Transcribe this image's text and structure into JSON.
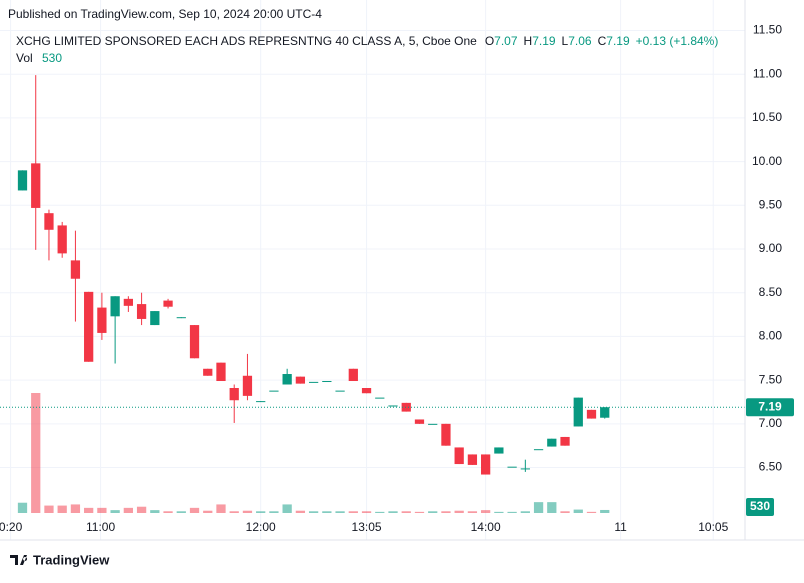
{
  "header": {
    "published": "Published on TradingView.com, Sep 10, 2024 20:00 UTC-4",
    "brand": "TradingView"
  },
  "chart_data": {
    "type": "candlestick",
    "title": "XCHG LIMITED SPONSORED EACH ADS REPRESNTNG 40 CLASS A, 5, Cboe One",
    "legend": [
      {
        "key": "O",
        "value": 7.07
      },
      {
        "key": "H",
        "value": 7.19
      },
      {
        "key": "L",
        "value": 7.06
      },
      {
        "key": "C",
        "value": 7.19
      }
    ],
    "change": "+0.13 (+1.84%)",
    "volume_label": "Vol",
    "last_volume": 530,
    "last_price": 7.19,
    "up_color": "#089981",
    "down_color": "#f23645",
    "grid": true,
    "x": [
      0,
      1,
      2,
      3,
      4,
      5,
      6,
      7,
      8,
      9,
      10,
      11,
      12,
      13,
      14,
      15,
      16,
      17,
      18,
      19,
      20,
      21,
      22,
      23,
      24,
      25,
      26,
      27,
      28,
      29,
      30,
      31,
      32,
      33,
      34,
      35,
      36,
      37,
      38,
      39,
      40,
      41,
      42,
      43,
      44
    ],
    "open": [
      9.67,
      9.98,
      9.41,
      9.27,
      8.87,
      8.51,
      8.33,
      8.23,
      8.43,
      8.37,
      8.13,
      8.41,
      8.21,
      8.13,
      7.63,
      7.7,
      7.41,
      7.55,
      7.25,
      7.38,
      7.45,
      7.54,
      7.48,
      7.49,
      7.38,
      7.63,
      7.41,
      7.3,
      7.21,
      7.24,
      7.05,
      7.0,
      7.0,
      6.73,
      6.65,
      6.65,
      6.66,
      6.51,
      6.49,
      6.71,
      6.74,
      6.85,
      6.97,
      7.16,
      7.07
    ],
    "high": [
      9.9,
      10.99,
      9.45,
      9.31,
      9.21,
      8.51,
      8.5,
      8.46,
      8.46,
      8.5,
      8.29,
      8.43,
      8.22,
      8.13,
      7.63,
      7.7,
      7.45,
      7.8,
      7.26,
      7.38,
      7.63,
      7.54,
      7.48,
      7.49,
      7.38,
      7.63,
      7.41,
      7.3,
      7.21,
      7.24,
      7.05,
      7.0,
      7.0,
      6.73,
      6.65,
      6.65,
      6.73,
      6.51,
      6.59,
      6.71,
      6.83,
      6.85,
      7.3,
      7.16,
      7.19
    ],
    "low": [
      9.67,
      8.99,
      8.87,
      8.9,
      8.17,
      7.71,
      7.96,
      7.69,
      8.28,
      8.13,
      8.13,
      8.32,
      8.21,
      7.75,
      7.55,
      7.49,
      7.01,
      7.27,
      7.25,
      7.38,
      7.45,
      7.46,
      7.48,
      7.49,
      7.38,
      7.49,
      7.35,
      7.3,
      7.21,
      7.14,
      7.0,
      7.0,
      6.75,
      6.54,
      6.53,
      6.42,
      6.66,
      6.51,
      6.45,
      6.71,
      6.74,
      6.75,
      6.97,
      7.06,
      7.06
    ],
    "close": [
      9.9,
      9.47,
      9.22,
      8.95,
      8.66,
      7.71,
      8.04,
      8.46,
      8.35,
      8.2,
      8.29,
      8.34,
      8.22,
      7.75,
      7.55,
      7.49,
      7.27,
      7.32,
      7.26,
      7.38,
      7.57,
      7.46,
      7.48,
      7.49,
      7.38,
      7.49,
      7.35,
      7.3,
      7.21,
      7.14,
      7.0,
      7.0,
      6.75,
      6.54,
      6.53,
      6.42,
      6.73,
      6.51,
      6.49,
      6.71,
      6.83,
      6.75,
      7.3,
      7.06,
      7.19
    ],
    "volume": [
      1800,
      21000,
      1300,
      1300,
      1500,
      900,
      900,
      500,
      900,
      1100,
      500,
      300,
      300,
      900,
      400,
      1500,
      300,
      400,
      300,
      300,
      1500,
      400,
      300,
      300,
      300,
      300,
      300,
      200,
      300,
      300,
      200,
      300,
      300,
      400,
      300,
      500,
      200,
      200,
      300,
      1900,
      1900,
      300,
      600,
      200,
      530
    ],
    "xlim": [
      -1.7,
      54.6
    ],
    "xticks": [
      {
        "value": -0.9,
        "label": "0:20"
      },
      {
        "value": 5.9,
        "label": "11:00"
      },
      {
        "value": 18,
        "label": "12:00"
      },
      {
        "value": 26,
        "label": "13:05"
      },
      {
        "value": 35,
        "label": "14:00"
      },
      {
        "value": 45.2,
        "label": "11"
      },
      {
        "value": 52.2,
        "label": "10:05"
      }
    ],
    "ylim": [
      5.98,
      11.62
    ],
    "yticks": [
      {
        "value": 6.5,
        "label": "6.50"
      },
      {
        "value": 7,
        "label": "7.00"
      },
      {
        "value": 7.5,
        "label": "7.50"
      },
      {
        "value": 8,
        "label": "8.00"
      },
      {
        "value": 8.5,
        "label": "8.50"
      },
      {
        "value": 9,
        "label": "9.00"
      },
      {
        "value": 9.5,
        "label": "9.50"
      },
      {
        "value": 10,
        "label": "10.00"
      },
      {
        "value": 10.5,
        "label": "10.50"
      },
      {
        "value": 11,
        "label": "11.00"
      },
      {
        "value": 11.5,
        "label": "11.50"
      }
    ],
    "volume_ylim": [
      0,
      21000
    ]
  }
}
